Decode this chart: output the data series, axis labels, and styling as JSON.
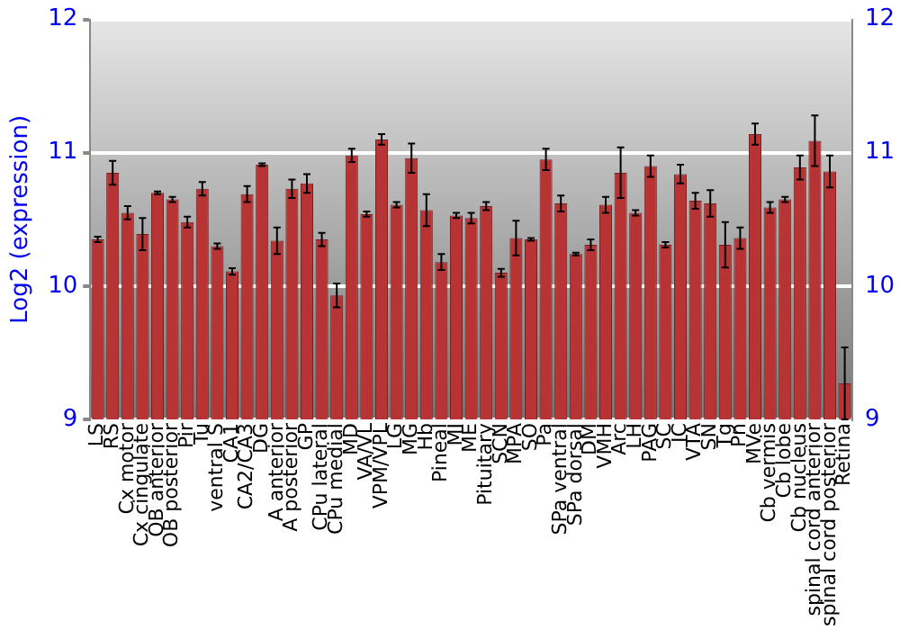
{
  "chart_data": {
    "type": "bar",
    "ylabel": "Log2 (expression)",
    "categories": [
      "LS",
      "RS",
      "Cx motor",
      "Cx cingulate",
      "OB anterior",
      "OB posterior",
      "Pir",
      "Tu",
      "ventral S",
      "CA1",
      "CA2/CA3",
      "DG",
      "A anterior",
      "A posterior",
      "GP",
      "CPu lateral",
      "CPu medial",
      "MD",
      "VA/VL",
      "VPM/VPL",
      "LG",
      "MG",
      "Hb",
      "Pineal",
      "MI",
      "ME",
      "Pituitary",
      "SCN",
      "MPA",
      "SO",
      "Pa",
      "SPa ventral",
      "SPa dorsal",
      "DM",
      "VMH",
      "Arc",
      "LH",
      "PAG",
      "SC",
      "IC",
      "VTA",
      "SN",
      "Tg",
      "Pn",
      "MVe",
      "Cb vermis",
      "Cb lobe",
      "Cb nucleus",
      "spinal cord anterior",
      "spinal cord posterior",
      "Retina"
    ],
    "series": [
      {
        "color": "#b83333",
        "values": [
          10.35,
          10.85,
          10.55,
          10.39,
          10.7,
          10.65,
          10.48,
          10.73,
          10.3,
          10.11,
          10.69,
          10.91,
          10.34,
          10.73,
          10.77,
          10.35,
          9.93,
          10.98,
          10.54,
          11.1,
          10.61,
          10.96,
          10.57,
          10.18,
          10.53,
          10.51,
          10.6,
          10.1,
          10.36,
          10.35,
          10.95,
          10.62,
          10.24,
          10.31,
          10.61,
          10.85,
          10.55,
          10.9,
          10.31,
          10.84,
          10.64,
          10.62,
          10.31,
          10.36,
          11.14,
          10.59,
          10.65,
          10.89,
          11.09,
          10.86,
          9.27
        ],
        "errors": [
          0.02,
          0.09,
          0.05,
          0.12,
          0.01,
          0.02,
          0.04,
          0.05,
          0.02,
          0.025,
          0.06,
          0.01,
          0.1,
          0.07,
          0.07,
          0.05,
          0.09,
          0.05,
          0.02,
          0.04,
          0.02,
          0.11,
          0.12,
          0.06,
          0.02,
          0.04,
          0.03,
          0.03,
          0.13,
          0.01,
          0.08,
          0.06,
          0.01,
          0.04,
          0.06,
          0.19,
          0.02,
          0.08,
          0.02,
          0.07,
          0.06,
          0.1,
          0.17,
          0.08,
          0.08,
          0.04,
          0.02,
          0.09,
          0.19,
          0.12,
          0.27
        ]
      }
    ],
    "ylim": [
      9,
      12
    ],
    "yticks": [
      9,
      10,
      11,
      12
    ],
    "y2lim": [
      9,
      12
    ],
    "y2ticks": [
      9,
      10,
      11,
      12
    ],
    "grid": "y",
    "legend": false
  }
}
